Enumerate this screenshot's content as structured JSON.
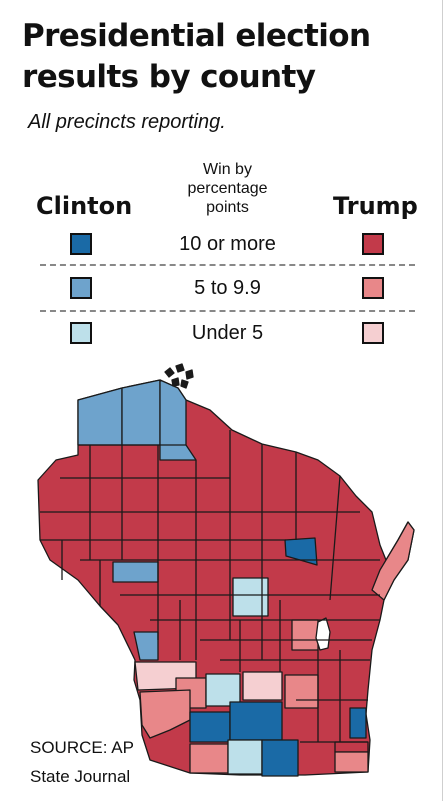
{
  "title": {
    "line1": "Presidential election",
    "line2": "results by county"
  },
  "subtitle": "All precincts reporting.",
  "legend": {
    "header": [
      "Win by",
      "percentage",
      "points"
    ],
    "left_candidate": "Clinton",
    "right_candidate": "Trump",
    "rows": [
      {
        "label": "10 or more",
        "clinton_color": "#1a6aa6",
        "trump_color": "#c23a4a"
      },
      {
        "label": "5 to 9.9",
        "clinton_color": "#6ea3cc",
        "trump_color": "#e88789"
      },
      {
        "label": "Under 5",
        "clinton_color": "#bde0ea",
        "trump_color": "#f5cfd1"
      }
    ]
  },
  "source": {
    "line1": "SOURCE: AP",
    "line2": "State Journal"
  }
}
